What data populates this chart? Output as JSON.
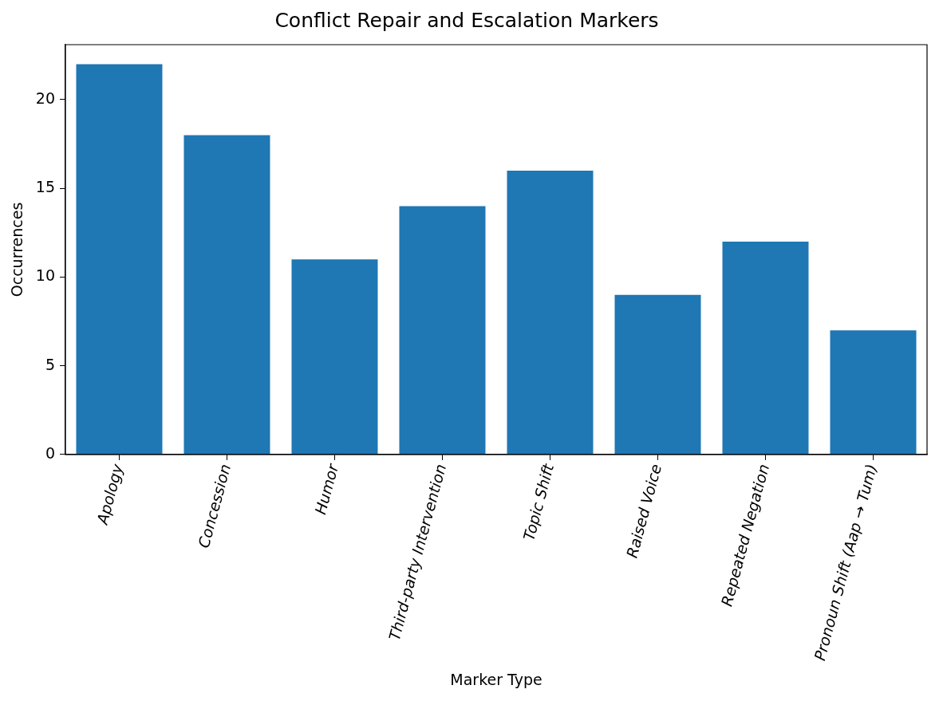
{
  "chart_data": {
    "type": "bar",
    "title": "Conflict Repair and Escalation Markers",
    "xlabel": "Marker Type",
    "ylabel": "Occurrences",
    "categories": [
      "Apology",
      "Concession",
      "Humor",
      "Third-party Intervention",
      "Topic Shift",
      "Raised Voice",
      "Repeated Negation",
      "Pronoun Shift (Aap → Tum)"
    ],
    "values": [
      22,
      18,
      11,
      14,
      16,
      9,
      12,
      7
    ],
    "color": "#1f77b4",
    "ylim": [
      0,
      23.1
    ],
    "yticks": [
      0,
      5,
      10,
      15,
      20
    ],
    "grid": false,
    "legend": false
  }
}
